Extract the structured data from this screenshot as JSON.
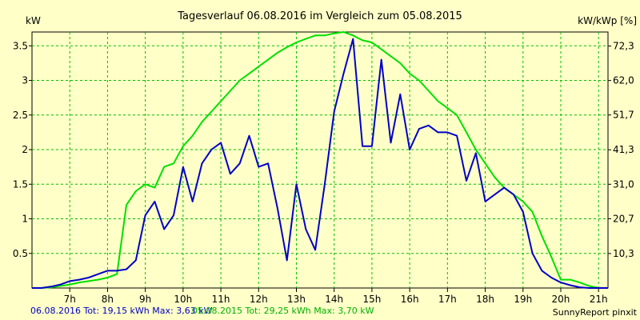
{
  "chart_data": {
    "type": "line",
    "title": "Tagesverlauf 06.08.2016 im Vergleich zum 05.08.2015",
    "ylabel_left": "kW",
    "ylabel_right": "kW/kWp [%]",
    "xlim": [
      6.0,
      21.25
    ],
    "ylim": [
      0,
      3.7
    ],
    "y2lim": [
      0,
      76.5
    ],
    "x_ticks": [
      7,
      8,
      9,
      10,
      11,
      12,
      13,
      14,
      15,
      16,
      17,
      18,
      19,
      20,
      21
    ],
    "x_tick_labels": [
      "7h",
      "8h",
      "9h",
      "10h",
      "11h",
      "12h",
      "13h",
      "14h",
      "15h",
      "16h",
      "17h",
      "18h",
      "19h",
      "20h",
      "21h"
    ],
    "y_ticks": [
      0.5,
      1,
      1.5,
      2,
      2.5,
      3,
      3.5
    ],
    "y_tick_labels": [
      "0.5",
      "1",
      "1.5",
      "2",
      "2.5",
      "3",
      "3.5"
    ],
    "y2_ticks": [
      10.3,
      20.7,
      31.0,
      41.3,
      51.7,
      62.0,
      72.3
    ],
    "y2_tick_labels": [
      "10,3",
      "20,7",
      "31,0",
      "41,3",
      "51,7",
      "62,0",
      "72,3"
    ],
    "grid": true,
    "series": [
      {
        "name": "06.08.2016 Tot: 19,15 kWh Max: 3,63 kW",
        "color": "#0000c8",
        "x": [
          6.0,
          6.25,
          6.5,
          6.75,
          7.0,
          7.25,
          7.5,
          7.75,
          8.0,
          8.25,
          8.5,
          8.75,
          9.0,
          9.25,
          9.5,
          9.75,
          10.0,
          10.25,
          10.5,
          10.75,
          11.0,
          11.25,
          11.5,
          11.75,
          12.0,
          12.25,
          12.5,
          12.75,
          13.0,
          13.25,
          13.5,
          13.75,
          14.0,
          14.25,
          14.5,
          14.75,
          15.0,
          15.25,
          15.5,
          15.75,
          16.0,
          16.25,
          16.5,
          16.75,
          17.0,
          17.25,
          17.5,
          17.75,
          18.0,
          18.25,
          18.5,
          18.75,
          19.0,
          19.25,
          19.5,
          19.75,
          20.0,
          20.25,
          20.5,
          20.75,
          21.0,
          21.25
        ],
        "values": [
          0.0,
          0.0,
          0.02,
          0.05,
          0.1,
          0.12,
          0.15,
          0.2,
          0.25,
          0.25,
          0.27,
          0.4,
          1.05,
          1.25,
          0.85,
          1.05,
          1.75,
          1.25,
          1.8,
          2.0,
          2.1,
          1.65,
          1.8,
          2.2,
          1.75,
          1.8,
          1.15,
          0.4,
          1.5,
          0.85,
          0.55,
          1.5,
          2.55,
          3.1,
          3.6,
          2.05,
          2.05,
          3.3,
          2.1,
          2.8,
          2.0,
          2.3,
          2.35,
          2.25,
          2.25,
          2.2,
          1.55,
          1.95,
          1.25,
          1.35,
          1.45,
          1.35,
          1.1,
          0.5,
          0.25,
          0.15,
          0.08,
          0.04,
          0.01,
          0.0,
          0.0,
          0.0
        ]
      },
      {
        "name": "05.08.2015 Tot: 29,25 kWh Max: 3,70 kW",
        "color": "#00e000",
        "x": [
          6.0,
          6.25,
          6.5,
          6.75,
          7.0,
          7.25,
          7.5,
          7.75,
          8.0,
          8.25,
          8.5,
          8.75,
          9.0,
          9.25,
          9.5,
          9.75,
          10.0,
          10.25,
          10.5,
          10.75,
          11.0,
          11.25,
          11.5,
          11.75,
          12.0,
          12.25,
          12.5,
          12.75,
          13.0,
          13.25,
          13.5,
          13.75,
          14.0,
          14.25,
          14.5,
          14.75,
          15.0,
          15.25,
          15.5,
          15.75,
          16.0,
          16.25,
          16.5,
          16.75,
          17.0,
          17.25,
          17.5,
          17.75,
          18.0,
          18.25,
          18.5,
          18.75,
          19.0,
          19.25,
          19.5,
          19.75,
          20.0,
          20.25,
          20.5,
          20.75,
          21.0,
          21.25
        ],
        "values": [
          0.0,
          0.0,
          0.01,
          0.03,
          0.05,
          0.08,
          0.1,
          0.12,
          0.15,
          0.2,
          1.2,
          1.4,
          1.5,
          1.45,
          1.75,
          1.8,
          2.05,
          2.2,
          2.4,
          2.55,
          2.7,
          2.85,
          3.0,
          3.1,
          3.2,
          3.3,
          3.4,
          3.48,
          3.55,
          3.6,
          3.65,
          3.65,
          3.68,
          3.7,
          3.65,
          3.58,
          3.55,
          3.45,
          3.35,
          3.25,
          3.1,
          3.0,
          2.85,
          2.7,
          2.6,
          2.5,
          2.25,
          2.0,
          1.8,
          1.6,
          1.45,
          1.35,
          1.25,
          1.1,
          0.75,
          0.45,
          0.12,
          0.12,
          0.08,
          0.03,
          0.0,
          0.0
        ]
      }
    ],
    "credit": "SunnyReport pinxit"
  }
}
